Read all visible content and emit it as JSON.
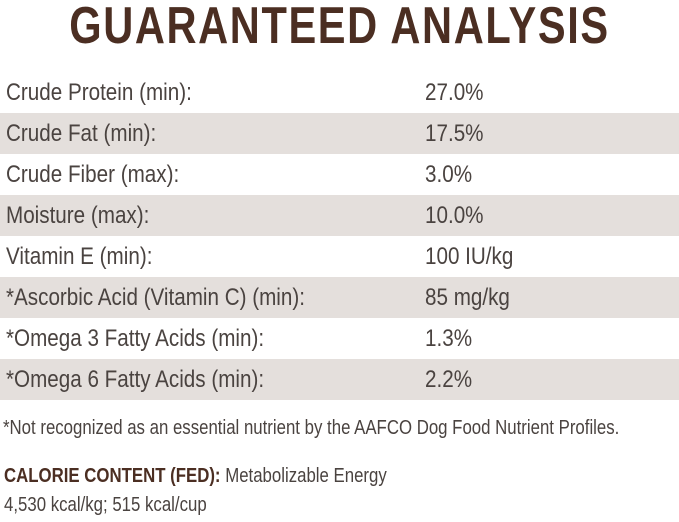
{
  "title": "GUARANTEED ANALYSIS",
  "rows": [
    {
      "label": "Crude Protein (min):",
      "value": "27.0%"
    },
    {
      "label": "Crude Fat (min):",
      "value": "17.5%"
    },
    {
      "label": "Crude Fiber (max):",
      "value": "3.0%"
    },
    {
      "label": "Moisture (max):",
      "value": "10.0%"
    },
    {
      "label": "Vitamin E (min):",
      "value": "100 IU/kg"
    },
    {
      "label": "*Ascorbic Acid (Vitamin C) (min):",
      "value": "85 mg/kg"
    },
    {
      "label": "*Omega 3 Fatty Acids (min):",
      "value": "1.3%"
    },
    {
      "label": "*Omega 6 Fatty Acids (min):",
      "value": "2.2%"
    }
  ],
  "footnote": "*Not recognized as an essential nutrient by the AAFCO Dog Food Nutrient Profiles.",
  "calorie": {
    "heading": "CALORIE CONTENT (FED):",
    "text": "Metabolizable Energy",
    "values": "4,530 kcal/kg; 515 kcal/cup"
  },
  "colors": {
    "title": "#4b2e22",
    "text": "#4a4340",
    "shaded_row": "#e4dfdc"
  }
}
